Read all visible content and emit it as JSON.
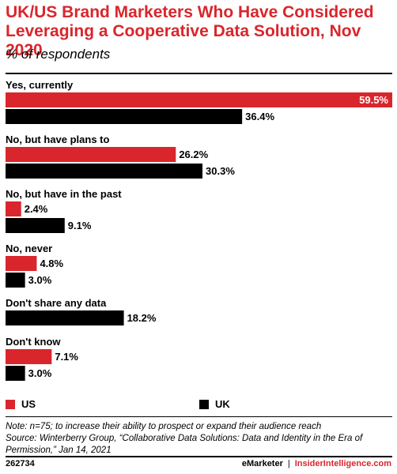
{
  "title": "UK/US Brand Marketers Who Have Considered Leveraging a Cooperative Data Solution, Nov 2020",
  "subtitle": "% of respondents",
  "colors": {
    "us": "#d9262c",
    "uk": "#000000",
    "title": "#d9262c"
  },
  "chart_data": {
    "type": "bar",
    "orientation": "horizontal",
    "categories": [
      "Yes, currently",
      "No, but have plans to",
      "No, but have in the past",
      "No, never",
      "Don't share any data",
      "Don't know"
    ],
    "series": [
      {
        "name": "US",
        "values": [
          59.5,
          26.2,
          2.4,
          4.8,
          null,
          7.1
        ]
      },
      {
        "name": "UK",
        "values": [
          36.4,
          30.3,
          9.1,
          3.0,
          18.2,
          3.0
        ]
      }
    ],
    "value_labels": {
      "US": [
        "59.5%",
        "26.2%",
        "2.4%",
        "4.8%",
        null,
        "7.1%"
      ],
      "UK": [
        "36.4%",
        "30.3%",
        "9.1%",
        "3.0%",
        "18.2%",
        "3.0%"
      ]
    },
    "xlim": [
      0,
      59.5
    ],
    "grid": false,
    "legend_position": "bottom"
  },
  "legend": [
    {
      "label": "US",
      "color": "#d9262c"
    },
    {
      "label": "UK",
      "color": "#000000"
    }
  ],
  "note": "Note: n=75; to increase their ability to prospect or expand their audience reach",
  "source": "Source: Winterberry Group, “Collaborative Data Solutions: Data and Identity in the Era of Permission,” Jan 14, 2021",
  "footer": {
    "id": "262734",
    "brand_left": "eMarketer",
    "separator": "|",
    "brand_right": "InsiderIntelligence.com"
  }
}
